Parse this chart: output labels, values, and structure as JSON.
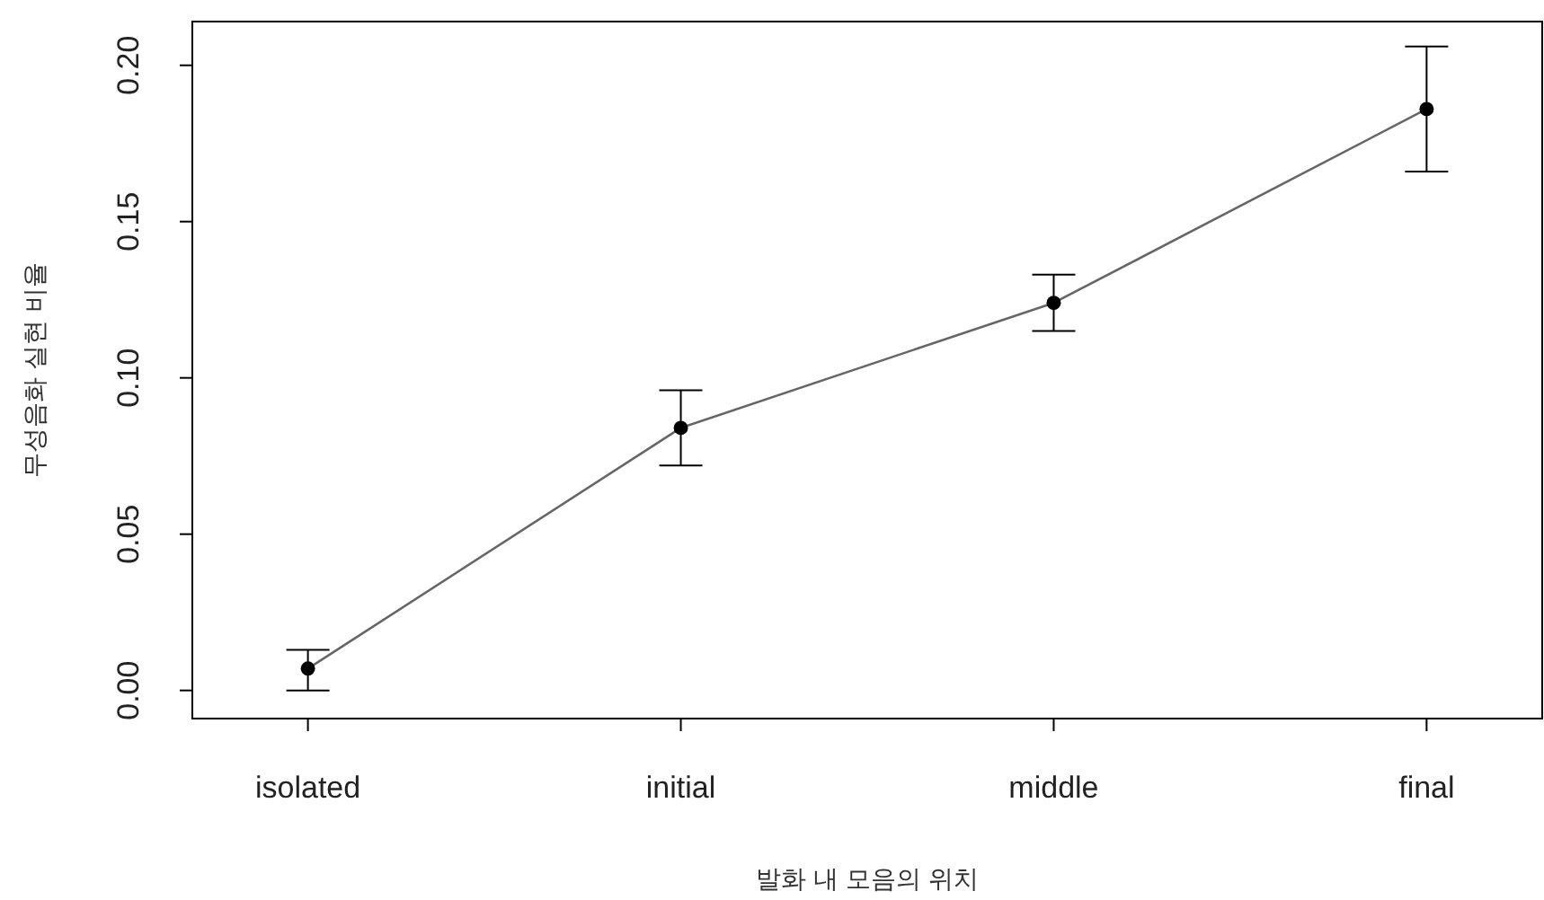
{
  "chart_data": {
    "type": "line",
    "xlabel": "발화 내 모음의 위치",
    "ylabel": "무성음화 실현 비율",
    "categories": [
      "isolated",
      "initial",
      "middle",
      "final"
    ],
    "series": [
      {
        "color": "#666666",
        "values": [
          0.007,
          0.084,
          0.124,
          0.186
        ],
        "errors": [
          [
            0.0,
            0.013
          ],
          [
            0.072,
            0.096
          ],
          [
            0.115,
            0.133
          ],
          [
            0.166,
            0.206
          ]
        ]
      }
    ],
    "ylim": [
      -0.009,
      0.214
    ],
    "yticks": [
      {
        "value": 0,
        "label": "0.00"
      },
      {
        "value": 0.05,
        "label": "0.05"
      },
      {
        "value": 0.1,
        "label": "0.10"
      },
      {
        "value": 0.15,
        "label": "0.15"
      },
      {
        "value": 0.2,
        "label": "0.20"
      }
    ],
    "marker": "circle",
    "line_style": "solid",
    "grid": false
  }
}
